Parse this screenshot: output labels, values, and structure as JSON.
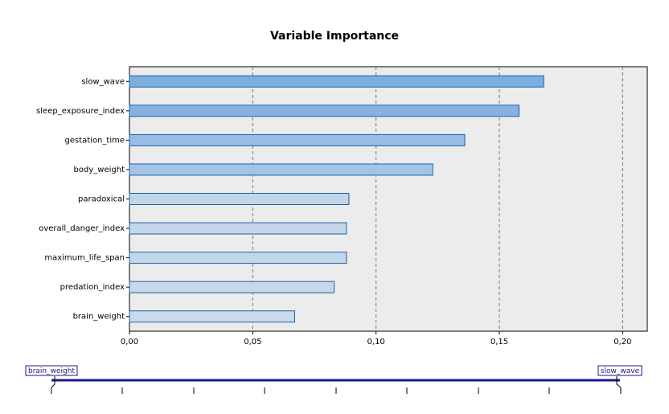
{
  "chart_data": {
    "type": "hbar",
    "title": "Variable Importance",
    "categories": [
      "slow_wave",
      "sleep_exposure_index",
      "gestation_time",
      "body_weight",
      "paradoxical",
      "overall_danger_index",
      "maximum_life_span",
      "predation_index",
      "brain_weight"
    ],
    "values": [
      0.168,
      0.158,
      0.136,
      0.123,
      0.089,
      0.088,
      0.088,
      0.083,
      0.067
    ],
    "colors": [
      "#7daee0",
      "#85b2e1",
      "#97bde4",
      "#a3c4e6",
      "#c2d6e9",
      "#c3d6e9",
      "#c3d6e9",
      "#c6d8ea",
      "#c9daea"
    ],
    "xlim": [
      0,
      0.21
    ],
    "xticks": [
      {
        "value": 0,
        "label": "0,00"
      },
      {
        "value": 0.05,
        "label": "0,05"
      },
      {
        "value": 0.1,
        "label": "0,10"
      },
      {
        "value": 0.15,
        "label": "0,15"
      },
      {
        "value": 0.2,
        "label": "0,20"
      }
    ],
    "grid": true
  },
  "slider": {
    "min_label": "brain_weight",
    "max_label": "slow_wave"
  }
}
